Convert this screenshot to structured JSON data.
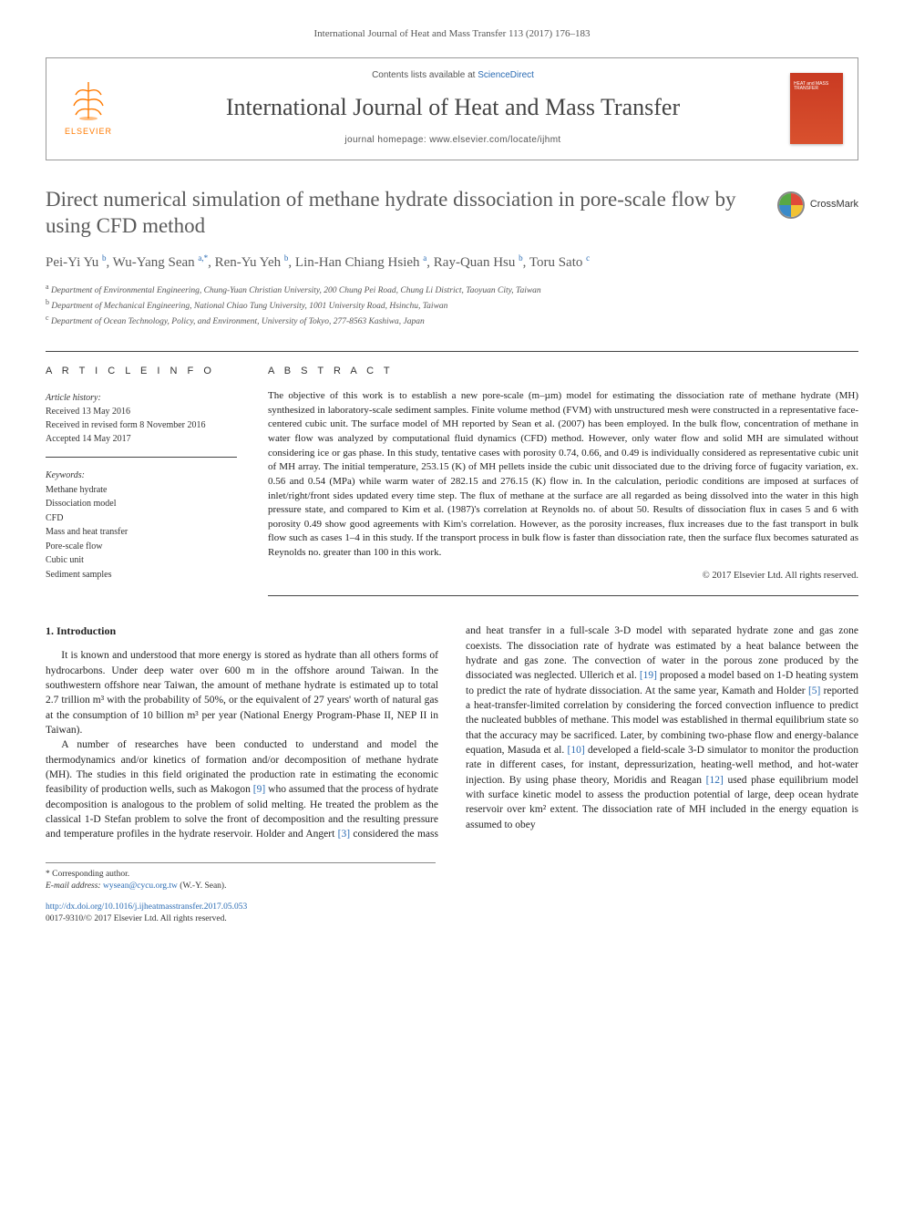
{
  "running_head": "International Journal of Heat and Mass Transfer 113 (2017) 176–183",
  "masthead": {
    "contents_prefix": "Contents lists available at ",
    "contents_link": "ScienceDirect",
    "journal_name": "International Journal of Heat and Mass Transfer",
    "homepage_prefix": "journal homepage: ",
    "homepage_url": "www.elsevier.com/locate/ijhmt",
    "publisher": "ELSEVIER",
    "cover_text": "HEAT and MASS TRANSFER"
  },
  "crossmark_label": "CrossMark",
  "title": "Direct numerical simulation of methane hydrate dissociation in pore-scale flow by using CFD method",
  "authors_html": "Pei-Yi Yu <sup>b</sup>, Wu-Yang Sean <sup>a,*</sup>, Ren-Yu Yeh <sup>b</sup>, Lin-Han Chiang Hsieh <sup>a</sup>, Ray-Quan Hsu <sup>b</sup>, Toru Sato <sup>c</sup>",
  "affiliations": [
    {
      "sup": "a",
      "text": "Department of Environmental Engineering, Chung-Yuan Christian University, 200 Chung Pei Road, Chung Li District, Taoyuan City, Taiwan"
    },
    {
      "sup": "b",
      "text": "Department of Mechanical Engineering, National Chiao Tung University, 1001 University Road, Hsinchu, Taiwan"
    },
    {
      "sup": "c",
      "text": "Department of Ocean Technology, Policy, and Environment, University of Tokyo, 277-8563 Kashiwa, Japan"
    }
  ],
  "info_heads": {
    "article_info": "A R T I C L E   I N F O",
    "abstract": "A B S T R A C T"
  },
  "history": {
    "label": "Article history:",
    "received": "Received 13 May 2016",
    "revised": "Received in revised form 8 November 2016",
    "accepted": "Accepted 14 May 2017"
  },
  "keywords": {
    "label": "Keywords:",
    "items": [
      "Methane hydrate",
      "Dissociation model",
      "CFD",
      "Mass and heat transfer",
      "Pore-scale flow",
      "Cubic unit",
      "Sediment samples"
    ]
  },
  "abstract": "The objective of this work is to establish a new pore-scale (m–µm) model for estimating the dissociation rate of methane hydrate (MH) synthesized in laboratory-scale sediment samples. Finite volume method (FVM) with unstructured mesh were constructed in a representative face-centered cubic unit. The surface model of MH reported by Sean et al. (2007) has been employed. In the bulk flow, concentration of methane in water flow was analyzed by computational fluid dynamics (CFD) method. However, only water flow and solid MH are simulated without considering ice or gas phase. In this study, tentative cases with porosity 0.74, 0.66, and 0.49 is individually considered as representative cubic unit of MH array. The initial temperature, 253.15 (K) of MH pellets inside the cubic unit dissociated due to the driving force of fugacity variation, ex. 0.56 and 0.54 (MPa) while warm water of 282.15 and 276.15 (K) flow in. In the calculation, periodic conditions are imposed at surfaces of inlet/right/front sides updated every time step. The flux of methane at the surface are all regarded as being dissolved into the water in this high pressure state, and compared to Kim et al. (1987)'s correlation at Reynolds no. of about 50. Results of dissociation flux in cases 5 and 6 with porosity 0.49 show good agreements with Kim's correlation. However, as the porosity increases, flux increases due to the fast transport in bulk flow such as cases 1–4 in this study. If the transport process in bulk flow is faster than dissociation rate, then the surface flux becomes saturated as Reynolds no. greater than 100 in this work.",
  "copyright": "© 2017 Elsevier Ltd. All rights reserved.",
  "section1": {
    "heading": "1. Introduction",
    "p1": "It is known and understood that more energy is stored as hydrate than all others forms of hydrocarbons. Under deep water over 600 m in the offshore around Taiwan. In the southwestern offshore near Taiwan, the amount of methane hydrate is estimated up to total 2.7 trillion m³ with the probability of 50%, or the equivalent of 27 years' worth of natural gas at the consumption of 10 billion m³ per year (National Energy Program-Phase II, NEP II in Taiwan).",
    "p2_a": "A number of researches have been conducted to understand and model the thermodynamics and/or kinetics of formation and/or decomposition of methane hydrate (MH). The studies in this field originated the production rate in estimating the economic feasibility of production wells, such as Makogon ",
    "p2_ref1": "[9]",
    "p2_b": " who assumed that the process of hydrate decomposition is analogous to the problem of solid melting. He treated the problem as the classical 1-D Stefan problem to solve the front of decomposition and the resulting pressure and temperature profiles in the hydrate reservoir. Holder and Angert ",
    "p2_ref2": "[3]",
    "p2_c": " considered the mass and heat transfer in a full-scale 3-D model with separated hydrate zone and gas zone coexists. The dissociation rate of hydrate was estimated by a heat balance between the hydrate and gas zone. The convection of water in the porous zone produced by the dissociated was neglected. Ullerich et al. ",
    "p2_ref3": "[19]",
    "p2_d": " proposed a model based on 1-D heating system to predict the rate of hydrate dissociation. At the same year, Kamath and Holder ",
    "p2_ref4": "[5]",
    "p2_e": " reported a heat-transfer-limited correlation by considering the forced convection influence to predict the nucleated bubbles of methane. This model was established in thermal equilibrium state so that the accuracy may be sacrificed. Later, by combining two-phase flow and energy-balance equation, Masuda et al. ",
    "p2_ref5": "[10]",
    "p2_f": " developed a field-scale 3-D simulator to monitor the production rate in different cases, for instant, depressurization, heating-well method, and hot-water injection. By using phase theory, Moridis and Reagan ",
    "p2_ref6": "[12]",
    "p2_g": " used phase equilibrium model with surface kinetic model to assess the production potential of large, deep ocean hydrate reservoir over km² extent. The dissociation rate of MH included in the energy equation is assumed to obey"
  },
  "footnote": {
    "corr": "* Corresponding author.",
    "email_label": "E-mail address: ",
    "email": "wysean@cycu.org.tw",
    "email_author": " (W.-Y. Sean)."
  },
  "doi": {
    "url": "http://dx.doi.org/10.1016/j.ijheatmasstransfer.2017.05.053",
    "issn_line": "0017-9310/© 2017 Elsevier Ltd. All rights reserved."
  },
  "colors": {
    "link": "#2a6bb3",
    "elsevier_orange": "#ff7a00",
    "cover_red": "#c93a22",
    "text_gray": "#5a5a5a"
  }
}
